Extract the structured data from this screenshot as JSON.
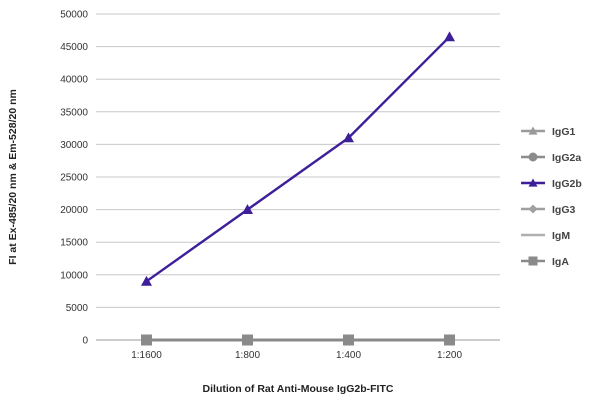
{
  "chart_data": {
    "type": "line",
    "xlabel": "Dilution of Rat Anti-Mouse IgG2b-FITC",
    "ylabel": "FI at Ex-485/20 nm & Em-528/20 nm",
    "categories": [
      "1:1600",
      "1:800",
      "1:400",
      "1:200"
    ],
    "ylim": [
      0,
      50000
    ],
    "yticks": [
      0,
      5000,
      10000,
      15000,
      20000,
      25000,
      30000,
      35000,
      40000,
      45000,
      50000
    ],
    "grid": true,
    "legend_position": "right",
    "series": [
      {
        "name": "IgG1",
        "values": [
          0,
          0,
          0,
          0
        ],
        "color": "#9a9a9a",
        "marker": "triangle"
      },
      {
        "name": "IgG2a",
        "values": [
          0,
          0,
          0,
          0
        ],
        "color": "#8c8c8c",
        "marker": "circle"
      },
      {
        "name": "IgG2b",
        "values": [
          9000,
          20000,
          31000,
          46500
        ],
        "color": "#3d1f9a",
        "marker": "triangle"
      },
      {
        "name": "IgG3",
        "values": [
          0,
          0,
          0,
          0
        ],
        "color": "#a0a0a0",
        "marker": "diamond"
      },
      {
        "name": "IgM",
        "values": [
          0,
          0,
          0,
          0
        ],
        "color": "#b0b0b0",
        "marker": "none"
      },
      {
        "name": "IgA",
        "values": [
          0,
          0,
          0,
          0
        ],
        "color": "#8a8a8a",
        "marker": "square"
      }
    ]
  }
}
